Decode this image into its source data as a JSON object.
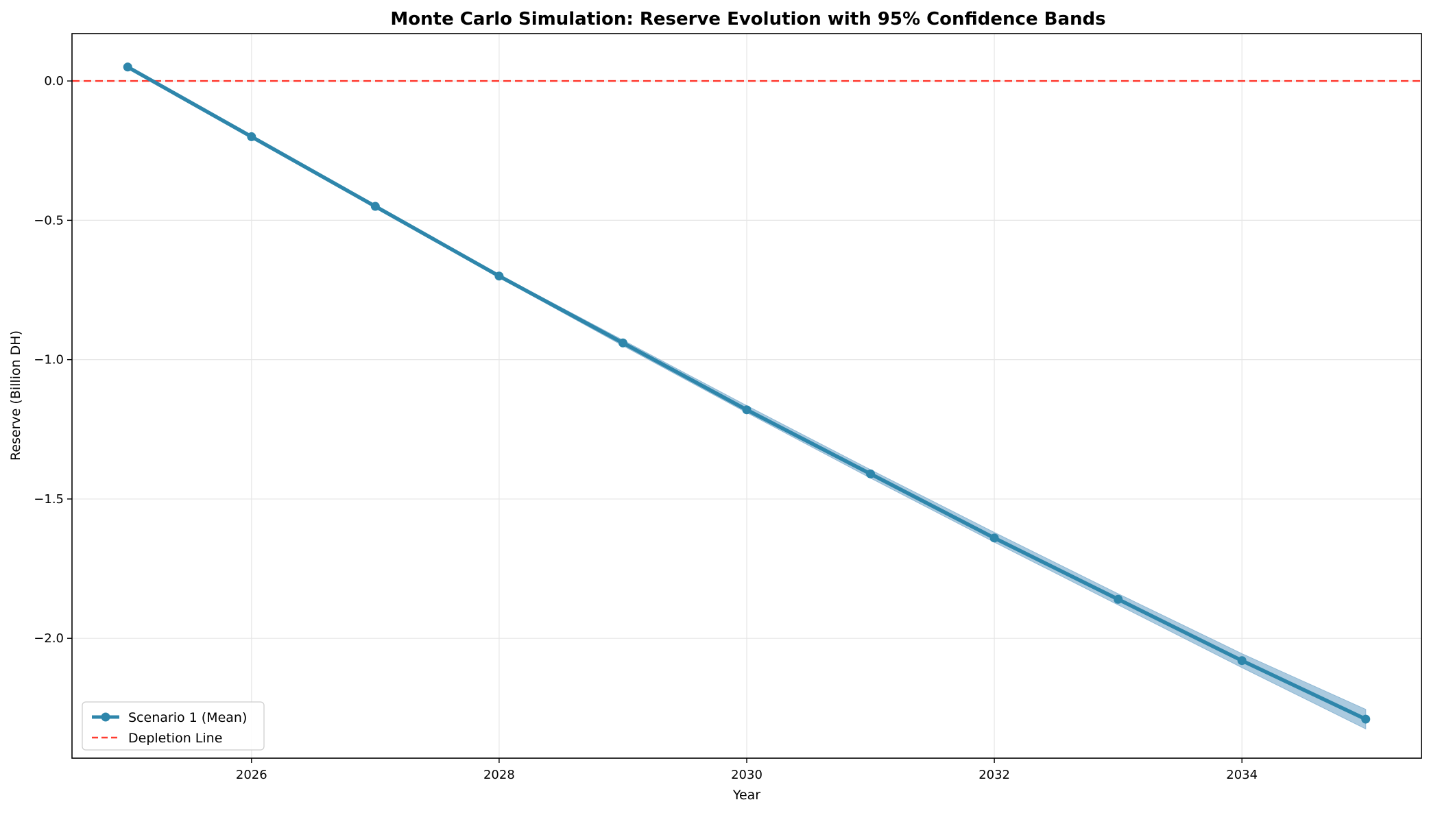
{
  "chart_data": {
    "type": "line",
    "title": "Monte Carlo Simulation: Reserve Evolution with 95% Confidence Bands",
    "xlabel": "Year",
    "ylabel": "Reserve (Billion DH)",
    "xlim": [
      2024.55,
      2035.45
    ],
    "ylim": [
      -2.43,
      0.17
    ],
    "xticks": [
      2026,
      2028,
      2030,
      2032,
      2034
    ],
    "xtick_labels": [
      "2026",
      "2028",
      "2030",
      "2032",
      "2034"
    ],
    "yticks": [
      0.0,
      -0.5,
      -1.0,
      -1.5,
      -2.0
    ],
    "ytick_labels": [
      "0.0",
      "−0.5",
      "−1.0",
      "−1.5",
      "−2.0"
    ],
    "grid": true,
    "legend_position": "lower-left",
    "x": [
      2025,
      2026,
      2027,
      2028,
      2029,
      2030,
      2031,
      2032,
      2033,
      2034,
      2035
    ],
    "series": [
      {
        "name": "Scenario 1 (Mean)",
        "color": "#2e86ab",
        "marker": "circle",
        "values": [
          0.05,
          -0.2,
          -0.45,
          -0.7,
          -0.94,
          -1.18,
          -1.41,
          -1.64,
          -1.86,
          -2.08,
          -2.29
        ],
        "ci_lower": [
          0.05,
          -0.2,
          -0.455,
          -0.705,
          -0.95,
          -1.19,
          -1.425,
          -1.655,
          -1.88,
          -2.105,
          -2.325
        ],
        "ci_upper": [
          0.05,
          -0.2,
          -0.445,
          -0.695,
          -0.93,
          -1.165,
          -1.395,
          -1.62,
          -1.84,
          -2.055,
          -2.255
        ],
        "band_color": "#8fb8d4"
      }
    ],
    "reference_lines": [
      {
        "name": "Depletion Line",
        "y": 0.0,
        "color": "#ff3b30",
        "style": "dashed"
      }
    ]
  }
}
